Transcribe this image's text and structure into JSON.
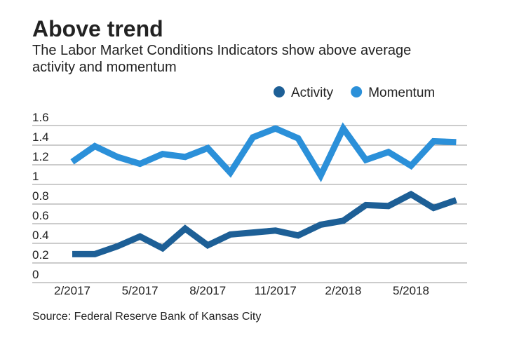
{
  "chart_data": {
    "type": "line",
    "title": "Above trend",
    "subtitle": "The Labor Market Conditions Indicators show above average activity and momentum",
    "source": "Source: Federal Reserve Bank of Kansas City",
    "categories": [
      "2/2017",
      null,
      null,
      "5/2017",
      null,
      null,
      "8/2017",
      null,
      null,
      "11/2017",
      null,
      null,
      "2/2018",
      null,
      null,
      "5/2018",
      null,
      null
    ],
    "series": [
      {
        "name": "Activity",
        "color": "#1d5f96",
        "values": [
          0.29,
          0.29,
          0.37,
          0.47,
          0.35,
          0.55,
          0.38,
          0.49,
          0.51,
          0.53,
          0.48,
          0.59,
          0.63,
          0.79,
          0.78,
          0.9,
          0.76,
          0.84
        ]
      },
      {
        "name": "Momentum",
        "color": "#2b90d9",
        "values": [
          1.23,
          1.39,
          1.28,
          1.21,
          1.31,
          1.28,
          1.37,
          1.12,
          1.48,
          1.57,
          1.47,
          1.09,
          1.57,
          1.25,
          1.33,
          1.19,
          1.44,
          1.43
        ]
      }
    ],
    "ylim": [
      0,
      1.6
    ],
    "yticks": [
      0,
      0.2,
      0.4,
      0.6,
      0.8,
      1,
      1.2,
      1.4,
      1.6
    ],
    "grid": true,
    "legend": "top-right"
  }
}
